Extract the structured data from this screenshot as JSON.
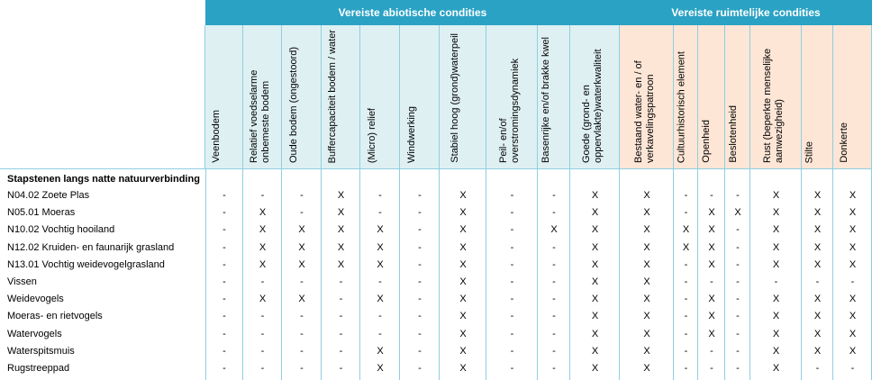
{
  "table": {
    "groups": [
      {
        "title": "Vereiste abiotische condities",
        "columns": [
          "Veenbodem",
          "Relatief voedselarme onbemeste bodem",
          "Oude bodem (ongestoord)",
          "Buffercapaciteit bodem / water",
          "(Micro) relief",
          "Windwerking",
          "Stabiel hoog (grond)waterpeil",
          "Peil- en/of overstromingsdynamiek",
          "Basenrijke en/of brakke kwel",
          "Goede (grond- en oppervlakte)waterkwaliteit"
        ]
      },
      {
        "title": "Vereiste ruimtelijke condities",
        "columns": [
          "Bestaand water- en / of verkavelingspatroon",
          "Cultuurhistorisch element",
          "Openheid",
          "Beslotenheid",
          "Rust (beperkte menselijke aanwezigheid)",
          "Stilte",
          "Donkerte"
        ]
      }
    ],
    "section": "Stapstenen langs natte natuurverbinding",
    "rows": [
      {
        "label": "N04.02 Zoete Plas",
        "cells": [
          "-",
          "-",
          "-",
          "X",
          "-",
          "-",
          "X",
          "-",
          "-",
          "X",
          "X",
          "-",
          "-",
          "-",
          "X",
          "X",
          "X"
        ]
      },
      {
        "label": "N05.01 Moeras",
        "cells": [
          "-",
          "X",
          "-",
          "X",
          "-",
          "-",
          "X",
          "-",
          "-",
          "X",
          "X",
          "-",
          "X",
          "X",
          "X",
          "X",
          "X"
        ]
      },
      {
        "label": "N10.02 Vochtig hooiland",
        "cells": [
          "-",
          "X",
          "X",
          "X",
          "X",
          "-",
          "X",
          "-",
          "X",
          "X",
          "X",
          "X",
          "X",
          "-",
          "X",
          "X",
          "X"
        ]
      },
      {
        "label": "N12.02 Kruiden- en faunarijk grasland",
        "cells": [
          "-",
          "X",
          "X",
          "X",
          "X",
          "-",
          "X",
          "-",
          "-",
          "X",
          "X",
          "X",
          "X",
          "-",
          "X",
          "X",
          "X"
        ]
      },
      {
        "label": "N13.01 Vochtig weidevogelgrasland",
        "cells": [
          "-",
          "X",
          "X",
          "X",
          "X",
          "-",
          "X",
          "-",
          "-",
          "X",
          "X",
          "-",
          "X",
          "-",
          "X",
          "X",
          "X"
        ]
      },
      {
        "label": "Vissen",
        "cells": [
          "-",
          "-",
          "-",
          "-",
          "-",
          "-",
          "X",
          "-",
          "-",
          "X",
          "X",
          "-",
          "-",
          "-",
          "-",
          "-",
          "-"
        ]
      },
      {
        "label": "Weidevogels",
        "cells": [
          "-",
          "X",
          "X",
          "-",
          "X",
          "-",
          "X",
          "-",
          "-",
          "X",
          "X",
          "-",
          "X",
          "-",
          "X",
          "X",
          "X"
        ]
      },
      {
        "label": "Moeras- en rietvogels",
        "cells": [
          "-",
          "-",
          "-",
          "-",
          "-",
          "-",
          "X",
          "-",
          "-",
          "X",
          "X",
          "-",
          "X",
          "-",
          "X",
          "X",
          "X"
        ]
      },
      {
        "label": "Watervogels",
        "cells": [
          "-",
          "-",
          "-",
          "-",
          "-",
          "-",
          "X",
          "-",
          "-",
          "X",
          "X",
          "-",
          "X",
          "-",
          "X",
          "X",
          "X"
        ]
      },
      {
        "label": "Waterspitsmuis",
        "cells": [
          "-",
          "-",
          "-",
          "-",
          "X",
          "-",
          "X",
          "-",
          "-",
          "X",
          "X",
          "-",
          "-",
          "-",
          "X",
          "X",
          "X"
        ]
      },
      {
        "label": "Rugstreeppad",
        "cells": [
          "-",
          "-",
          "-",
          "-",
          "X",
          "-",
          "X",
          "-",
          "-",
          "X",
          "X",
          "-",
          "-",
          "-",
          "X",
          "-",
          "-"
        ]
      }
    ]
  }
}
